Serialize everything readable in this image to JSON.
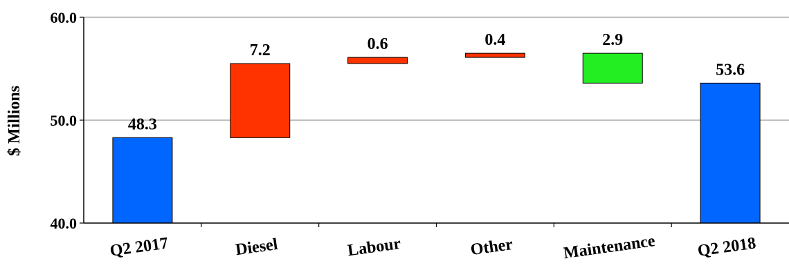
{
  "chart_data": {
    "type": "bar",
    "subtype": "waterfall",
    "title": "",
    "xlabel": "",
    "ylabel": "$ Millions",
    "ylim": [
      40.0,
      60.0
    ],
    "yticks": [
      "40.0",
      "50.0",
      "60.0"
    ],
    "ytick_values": [
      40,
      50,
      60
    ],
    "grid": true,
    "legend": "none",
    "categories": [
      "Q2 2017",
      "Diesel",
      "Labour",
      "Other",
      "Maintenance",
      "Q2 2018"
    ],
    "bars": [
      {
        "category": "Q2 2017",
        "kind": "total",
        "start": 40.0,
        "end": 48.3,
        "label": "48.3",
        "color": "#0066ff"
      },
      {
        "category": "Diesel",
        "kind": "increase",
        "start": 48.3,
        "end": 55.5,
        "label": "7.2",
        "color": "#ff3300"
      },
      {
        "category": "Labour",
        "kind": "increase",
        "start": 55.5,
        "end": 56.1,
        "label": "0.6",
        "color": "#ff3300"
      },
      {
        "category": "Other",
        "kind": "increase",
        "start": 56.1,
        "end": 56.5,
        "label": "0.4",
        "color": "#ff3300"
      },
      {
        "category": "Maintenance",
        "kind": "decrease",
        "start": 56.5,
        "end": 53.6,
        "label": "2.9",
        "color": "#22ee22"
      },
      {
        "category": "Q2 2018",
        "kind": "total",
        "start": 40.0,
        "end": 53.6,
        "label": "53.6",
        "color": "#0066ff"
      }
    ]
  }
}
